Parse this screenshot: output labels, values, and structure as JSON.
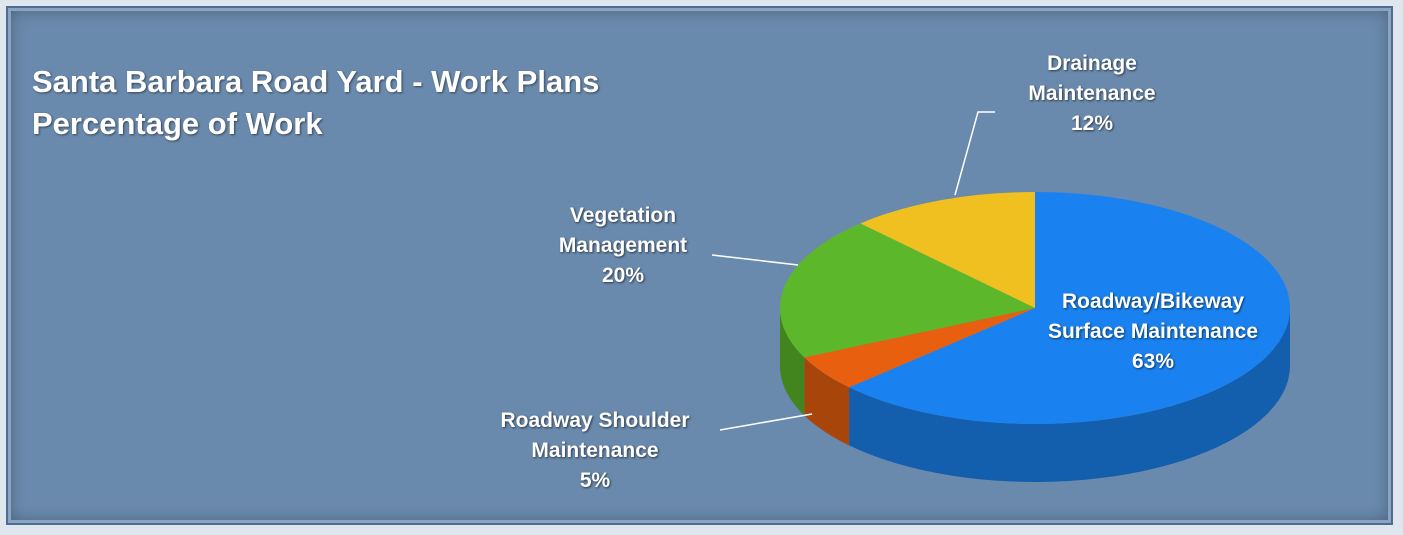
{
  "chart_data": {
    "type": "pie",
    "title": "Santa Barbara Road Yard - Work Plans",
    "subtitle": "Percentage of Work",
    "categories": [
      "Roadway/Bikeway Surface Maintenance",
      "Roadway Shoulder Maintenance",
      "Vegetation Management",
      "Drainage Maintenance"
    ],
    "values": [
      63,
      5,
      20,
      12
    ],
    "value_labels": [
      "63%",
      "5%",
      "20%",
      "12%"
    ],
    "colors": [
      "#1a82f0",
      "#e8600f",
      "#5cb82a",
      "#f0c020"
    ]
  }
}
